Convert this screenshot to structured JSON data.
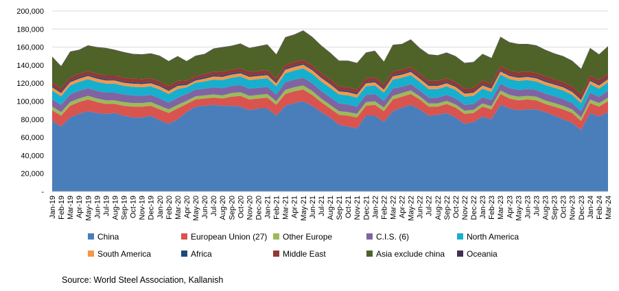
{
  "chart_data": {
    "type": "area",
    "stacked": true,
    "title": "",
    "xlabel": "",
    "ylabel": "",
    "ylim": [
      0,
      200000
    ],
    "yticks": [
      0,
      20000,
      40000,
      60000,
      80000,
      100000,
      120000,
      140000,
      160000,
      180000,
      200000
    ],
    "ytick_labels": [
      "-",
      "20,000",
      "40,000",
      "60,000",
      "80,000",
      "100,000",
      "120,000",
      "140,000",
      "160,000",
      "180,000",
      "200,000"
    ],
    "grid": true,
    "legend_position": "bottom",
    "source": "Source: World Steel Association, Kallanish",
    "x": [
      "Jan-19",
      "Feb-19",
      "Mar-19",
      "Apr-19",
      "May-19",
      "Jun-19",
      "Jul-19",
      "Aug-19",
      "Sep-19",
      "Oct-19",
      "Nov-19",
      "Dec-19",
      "Jan-20",
      "Feb-20",
      "Mar-20",
      "Apr-20",
      "May-20",
      "Jun-20",
      "Jul-20",
      "Aug-20",
      "Sep-20",
      "Oct-20",
      "Nov-20",
      "Dec-20",
      "Jan-21",
      "Feb-21",
      "Mar-21",
      "Apr-21",
      "May-21",
      "Jun-21",
      "Jul-21",
      "Aug-21",
      "Sep-21",
      "Oct-21",
      "Nov-21",
      "Dec-21",
      "Jan-22",
      "Feb-22",
      "Mar-22",
      "Apr-22",
      "May-22",
      "Jun-22",
      "Jul-22",
      "Aug-22",
      "Sep-22",
      "Oct-22",
      "Nov-22",
      "Dec-22",
      "Jan-23",
      "Feb-23",
      "Mar-23",
      "Apr-23",
      "May-23",
      "Jun-23",
      "Jul-23",
      "Aug-23",
      "Sep-23",
      "Oct-23",
      "Nov-23",
      "Dec-23",
      "Jan-24",
      "Feb-24",
      "Mar-24"
    ],
    "series": [
      {
        "name": "China",
        "color": "#4A7EBB",
        "values": [
          78000,
          72000,
          82000,
          86000,
          89000,
          87000,
          86000,
          87000,
          84000,
          82000,
          82000,
          84000,
          79000,
          75000,
          80000,
          88000,
          94000,
          95000,
          96000,
          95000,
          95000,
          94000,
          90000,
          92000,
          92000,
          84000,
          95000,
          98000,
          100000,
          95000,
          88000,
          82000,
          74000,
          72000,
          70000,
          84000,
          84000,
          77000,
          89000,
          93000,
          96000,
          91000,
          84000,
          85000,
          87000,
          82000,
          75000,
          77000,
          83000,
          80000,
          96000,
          92000,
          90000,
          91000,
          91000,
          88000,
          84000,
          80000,
          76000,
          68000,
          87000,
          83000,
          88000
        ]
      },
      {
        "name": "European Union (27)",
        "color": "#D9534F",
        "values": [
          12000,
          12000,
          13000,
          13000,
          13000,
          12000,
          11000,
          10000,
          11000,
          12000,
          12000,
          11000,
          12000,
          12000,
          12000,
          9000,
          8000,
          8000,
          8000,
          8000,
          10000,
          12000,
          12000,
          11000,
          12000,
          12000,
          13000,
          13000,
          13000,
          12000,
          11000,
          10000,
          11000,
          12000,
          12000,
          11000,
          12000,
          12000,
          13000,
          12000,
          12000,
          11000,
          10000,
          9000,
          10000,
          11000,
          11000,
          10000,
          11000,
          11000,
          12000,
          11000,
          11000,
          11000,
          10000,
          9000,
          10000,
          11000,
          11000,
          10000,
          11000,
          11000,
          12000
        ]
      },
      {
        "name": "Other Europe",
        "color": "#9BBB59",
        "values": [
          4000,
          4000,
          4000,
          4000,
          4000,
          4000,
          4000,
          4000,
          4000,
          4000,
          4000,
          4000,
          4000,
          4000,
          4000,
          3500,
          3500,
          3500,
          3500,
          3500,
          4000,
          4000,
          4000,
          4000,
          4000,
          4000,
          4500,
          4500,
          4500,
          4500,
          4000,
          4000,
          4000,
          4000,
          4000,
          4000,
          4000,
          4000,
          4000,
          4000,
          4000,
          3500,
          3500,
          3500,
          3500,
          3500,
          3500,
          3500,
          3500,
          3500,
          4000,
          4000,
          4000,
          4000,
          4000,
          4000,
          4000,
          4000,
          4000,
          4000,
          4000,
          4000,
          4000
        ]
      },
      {
        "name": "C.I.S. (6)",
        "color": "#8064A2",
        "values": [
          8000,
          8000,
          8500,
          8500,
          8500,
          8500,
          8500,
          8500,
          8500,
          8500,
          8000,
          8000,
          8000,
          7500,
          8000,
          7500,
          7500,
          7500,
          8000,
          8000,
          8000,
          8000,
          8000,
          8000,
          8000,
          7500,
          8500,
          8500,
          8500,
          8500,
          8500,
          8500,
          8500,
          8500,
          8000,
          8000,
          8000,
          7500,
          8000,
          7000,
          7000,
          6500,
          6500,
          6500,
          6500,
          6500,
          6500,
          6500,
          7000,
          7000,
          7500,
          7500,
          7500,
          7500,
          7500,
          7500,
          7500,
          7500,
          7000,
          7000,
          7500,
          7000,
          7500
        ]
      },
      {
        "name": "North America",
        "color": "#17AFCE",
        "values": [
          10000,
          9500,
          10000,
          10000,
          10000,
          10000,
          10000,
          10000,
          9500,
          9500,
          9500,
          9500,
          10000,
          9500,
          9500,
          7500,
          7500,
          8000,
          8500,
          9000,
          9000,
          9500,
          9500,
          9500,
          9500,
          9000,
          10000,
          10000,
          10500,
          10500,
          10500,
          10500,
          10000,
          10000,
          10000,
          9500,
          9500,
          9000,
          10000,
          10000,
          10000,
          9500,
          9500,
          9500,
          9500,
          9500,
          9000,
          9000,
          9500,
          9000,
          10000,
          10000,
          10000,
          10000,
          9500,
          9500,
          9500,
          9500,
          9000,
          9000,
          9500,
          9000,
          9500
        ]
      },
      {
        "name": "South America",
        "color": "#F79646",
        "values": [
          3500,
          3500,
          3500,
          3500,
          3500,
          3500,
          3500,
          3500,
          3500,
          3500,
          3500,
          3500,
          3500,
          3500,
          3500,
          2500,
          2500,
          3000,
          3500,
          3500,
          3500,
          3500,
          3500,
          3500,
          3500,
          3500,
          4000,
          4000,
          4000,
          4000,
          4000,
          4000,
          3500,
          3500,
          3500,
          3500,
          3500,
          3500,
          3500,
          3500,
          3500,
          3500,
          3500,
          3500,
          3500,
          3500,
          3500,
          3500,
          3500,
          3500,
          3500,
          3500,
          3500,
          3500,
          3500,
          3500,
          3500,
          3500,
          3500,
          3500,
          3500,
          3500,
          3500
        ]
      },
      {
        "name": "Africa",
        "color": "#1F497D",
        "values": [
          1500,
          1500,
          1500,
          1500,
          1500,
          1500,
          1500,
          1500,
          1500,
          1500,
          1500,
          1500,
          1500,
          1500,
          1500,
          1500,
          1500,
          1500,
          1500,
          1500,
          1500,
          1500,
          1500,
          1500,
          1500,
          1500,
          1500,
          1500,
          1500,
          1500,
          1500,
          1500,
          1500,
          1500,
          1500,
          1500,
          1500,
          1500,
          1500,
          1500,
          1500,
          1500,
          1500,
          1500,
          1500,
          1500,
          1500,
          1500,
          1500,
          1500,
          1500,
          1500,
          1500,
          1500,
          1500,
          1500,
          1500,
          1500,
          1500,
          1500,
          1500,
          1500,
          1500
        ]
      },
      {
        "name": "Middle East",
        "color": "#953735",
        "values": [
          4000,
          4000,
          4000,
          4000,
          4000,
          4000,
          4000,
          4000,
          4000,
          4000,
          4000,
          4000,
          4000,
          4000,
          4000,
          3500,
          3500,
          3500,
          4000,
          4000,
          4000,
          4000,
          4000,
          4000,
          4000,
          4000,
          4000,
          4000,
          4000,
          4000,
          4000,
          4000,
          4000,
          4000,
          4000,
          4000,
          4000,
          4000,
          4000,
          4000,
          4000,
          4000,
          4000,
          4000,
          4000,
          4000,
          4000,
          4000,
          4000,
          4000,
          4500,
          4500,
          4500,
          4500,
          4500,
          4500,
          4500,
          4500,
          4500,
          4500,
          4500,
          4500,
          4500
        ]
      },
      {
        "name": "Asia exclude china",
        "color": "#4F6228",
        "values": [
          28000,
          24000,
          28000,
          26000,
          28000,
          29000,
          30000,
          28000,
          28000,
          27000,
          27000,
          27000,
          28000,
          27000,
          27000,
          21000,
          22000,
          22000,
          25000,
          27000,
          26000,
          27000,
          26000,
          27000,
          28000,
          26000,
          30000,
          30000,
          32000,
          31000,
          30000,
          29000,
          28000,
          29000,
          29000,
          28000,
          29000,
          25000,
          29000,
          28000,
          30000,
          28000,
          29000,
          28000,
          28000,
          28000,
          28000,
          28000,
          29000,
          28000,
          32000,
          31000,
          31000,
          30000,
          30000,
          29000,
          28000,
          28000,
          28000,
          28000,
          30000,
          28000,
          30000
        ]
      },
      {
        "name": "Oceania",
        "color": "#403152",
        "values": [
          500,
          500,
          500,
          500,
          500,
          500,
          500,
          500,
          500,
          500,
          500,
          500,
          500,
          500,
          500,
          500,
          500,
          500,
          500,
          500,
          500,
          500,
          500,
          500,
          500,
          500,
          500,
          500,
          500,
          500,
          500,
          500,
          500,
          500,
          500,
          500,
          500,
          500,
          500,
          500,
          500,
          500,
          500,
          500,
          500,
          500,
          500,
          500,
          500,
          500,
          500,
          500,
          500,
          500,
          500,
          500,
          500,
          500,
          500,
          500,
          500,
          500,
          500
        ]
      }
    ]
  }
}
